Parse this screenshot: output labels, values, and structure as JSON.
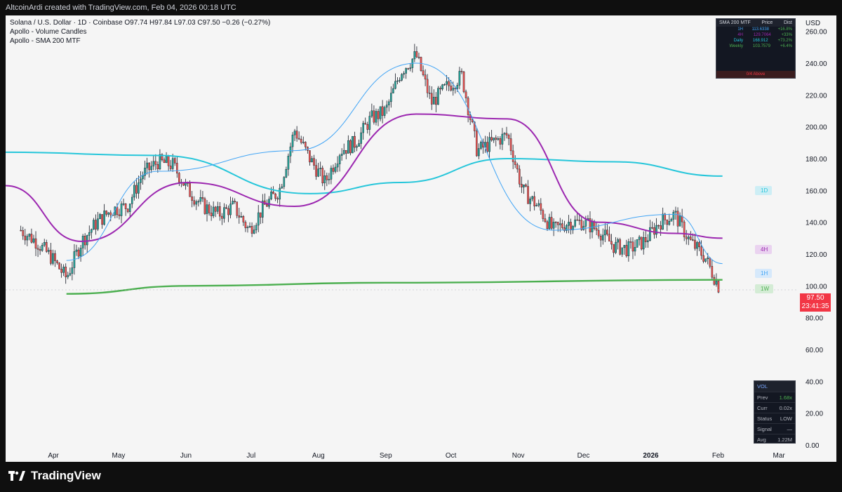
{
  "header": {
    "text": "AltcoinArdi created with TradingView.com, Feb 04, 2026 00:18 UTC"
  },
  "legend": {
    "symbol_line": "Solana / U.S. Dollar · 1D · Coinbase  O97.74  H97.84  L97.03  C97.50  −0.26 (−0.27%)",
    "indicator_1": "Apollo - Volume Candles",
    "indicator_2": "Apollo - SMA 200 MTF"
  },
  "colors": {
    "up": "#26a69a",
    "down": "#ef5350",
    "sma_1d": "#26c6da",
    "sma_4h": "#9c27b0",
    "sma_1h": "#42a5f5",
    "sma_1w": "#4caf50",
    "bg": "#f5f5f5"
  },
  "mtf_table": {
    "title": "SMA 200 MTF",
    "col_price": "Price",
    "col_dist": "Dist",
    "rows": [
      {
        "tf": "1H",
        "price": "113.6338",
        "dist": "+16.8%",
        "color": "#42a5f5"
      },
      {
        "tf": "4H",
        "price": "129.7064",
        "dist": "+33%",
        "color": "#9c27b0"
      },
      {
        "tf": "Daily",
        "price": "168.912",
        "dist": "+73.2%",
        "color": "#26c6da"
      },
      {
        "tf": "Weekly",
        "price": "103.7579",
        "dist": "+6.4%",
        "color": "#4caf50"
      }
    ],
    "footer": "0/4 Above"
  },
  "vol_table": {
    "title": "VOL",
    "rows": [
      {
        "label": "Prev",
        "value": "1.68x",
        "color": "#4caf50"
      },
      {
        "label": "Curr",
        "value": "0.02x",
        "color": "#b2b5be"
      },
      {
        "label": "Status",
        "value": "LOW",
        "color": "#b2b5be"
      },
      {
        "label": "Signal",
        "value": "—",
        "color": "#b2b5be"
      },
      {
        "label": "Avg",
        "value": "1.22M",
        "color": "#b2b5be"
      }
    ]
  },
  "ma_tags": [
    {
      "label": "1D",
      "color": "#26c6da"
    },
    {
      "label": "4H",
      "color": "#9c27b0"
    },
    {
      "label": "1H",
      "color": "#42a5f5"
    },
    {
      "label": "1W",
      "color": "#4caf50"
    }
  ],
  "last_price": {
    "price": "97.50",
    "countdown": "23:41:35"
  },
  "footer": {
    "brand": "TradingView"
  },
  "chart_data": {
    "type": "line",
    "currency": "USD",
    "ylim": [
      0,
      270
    ],
    "y_ticks": [
      "0.00",
      "20.00",
      "40.00",
      "60.00",
      "80.00",
      "100.00",
      "120.00",
      "140.00",
      "160.00",
      "180.00",
      "200.00",
      "220.00",
      "240.00",
      "260.00"
    ],
    "x_ticks": [
      "Apr",
      "May",
      "Jun",
      "Jul",
      "Aug",
      "Sep",
      "Oct",
      "Nov",
      "Dec",
      "2026",
      "Feb",
      "Mar"
    ],
    "price_path": [
      {
        "x": "2025-03-17",
        "y": 135
      },
      {
        "x": "2025-03-24",
        "y": 128
      },
      {
        "x": "2025-03-31",
        "y": 118
      },
      {
        "x": "2025-04-07",
        "y": 105
      },
      {
        "x": "2025-04-14",
        "y": 128
      },
      {
        "x": "2025-04-21",
        "y": 140
      },
      {
        "x": "2025-04-28",
        "y": 148
      },
      {
        "x": "2025-05-05",
        "y": 150
      },
      {
        "x": "2025-05-12",
        "y": 170
      },
      {
        "x": "2025-05-19",
        "y": 178
      },
      {
        "x": "2025-05-26",
        "y": 176
      },
      {
        "x": "2025-06-02",
        "y": 160
      },
      {
        "x": "2025-06-09",
        "y": 150
      },
      {
        "x": "2025-06-16",
        "y": 145
      },
      {
        "x": "2025-06-23",
        "y": 150
      },
      {
        "x": "2025-06-30",
        "y": 135
      },
      {
        "x": "2025-07-07",
        "y": 150
      },
      {
        "x": "2025-07-14",
        "y": 160
      },
      {
        "x": "2025-07-21",
        "y": 198
      },
      {
        "x": "2025-07-28",
        "y": 180
      },
      {
        "x": "2025-08-04",
        "y": 165
      },
      {
        "x": "2025-08-11",
        "y": 185
      },
      {
        "x": "2025-08-18",
        "y": 190
      },
      {
        "x": "2025-08-25",
        "y": 205
      },
      {
        "x": "2025-09-01",
        "y": 210
      },
      {
        "x": "2025-09-08",
        "y": 235
      },
      {
        "x": "2025-09-15",
        "y": 245
      },
      {
        "x": "2025-09-22",
        "y": 215
      },
      {
        "x": "2025-09-29",
        "y": 225
      },
      {
        "x": "2025-10-06",
        "y": 232
      },
      {
        "x": "2025-10-13",
        "y": 185
      },
      {
        "x": "2025-10-20",
        "y": 190
      },
      {
        "x": "2025-10-27",
        "y": 195
      },
      {
        "x": "2025-11-03",
        "y": 160
      },
      {
        "x": "2025-11-10",
        "y": 150
      },
      {
        "x": "2025-11-17",
        "y": 135
      },
      {
        "x": "2025-11-24",
        "y": 140
      },
      {
        "x": "2025-12-01",
        "y": 140
      },
      {
        "x": "2025-12-08",
        "y": 135
      },
      {
        "x": "2025-12-15",
        "y": 125
      },
      {
        "x": "2025-12-22",
        "y": 123
      },
      {
        "x": "2025-12-29",
        "y": 128
      },
      {
        "x": "2026-01-05",
        "y": 140
      },
      {
        "x": "2026-01-12",
        "y": 145
      },
      {
        "x": "2026-01-19",
        "y": 128
      },
      {
        "x": "2026-01-26",
        "y": 118
      },
      {
        "x": "2026-02-02",
        "y": 97.5
      }
    ],
    "series": [
      {
        "name": "1D",
        "values": [
          {
            "x": "2025-03-10",
            "y": 184
          },
          {
            "x": "2025-05-19",
            "y": 182
          },
          {
            "x": "2025-07-28",
            "y": 158
          },
          {
            "x": "2025-09-08",
            "y": 165
          },
          {
            "x": "2025-10-27",
            "y": 180
          },
          {
            "x": "2025-12-15",
            "y": 178
          },
          {
            "x": "2026-02-03",
            "y": 169
          }
        ]
      },
      {
        "name": "4H",
        "values": [
          {
            "x": "2025-03-10",
            "y": 163
          },
          {
            "x": "2025-04-14",
            "y": 128
          },
          {
            "x": "2025-06-02",
            "y": 165
          },
          {
            "x": "2025-07-21",
            "y": 150
          },
          {
            "x": "2025-09-15",
            "y": 208
          },
          {
            "x": "2025-10-27",
            "y": 205
          },
          {
            "x": "2025-12-08",
            "y": 140
          },
          {
            "x": "2026-01-12",
            "y": 133
          },
          {
            "x": "2026-02-03",
            "y": 130
          }
        ]
      },
      {
        "name": "1H",
        "values": [
          {
            "x": "2025-04-07",
            "y": 116
          },
          {
            "x": "2025-05-19",
            "y": 172
          },
          {
            "x": "2025-07-21",
            "y": 185
          },
          {
            "x": "2025-09-15",
            "y": 240
          },
          {
            "x": "2025-11-17",
            "y": 135
          },
          {
            "x": "2026-01-12",
            "y": 145
          },
          {
            "x": "2026-02-03",
            "y": 114
          }
        ]
      },
      {
        "name": "1W",
        "values": [
          {
            "x": "2025-04-07",
            "y": 95
          },
          {
            "x": "2025-06-02",
            "y": 100
          },
          {
            "x": "2025-09-01",
            "y": 102
          },
          {
            "x": "2026-02-03",
            "y": 103.8
          }
        ]
      }
    ]
  }
}
